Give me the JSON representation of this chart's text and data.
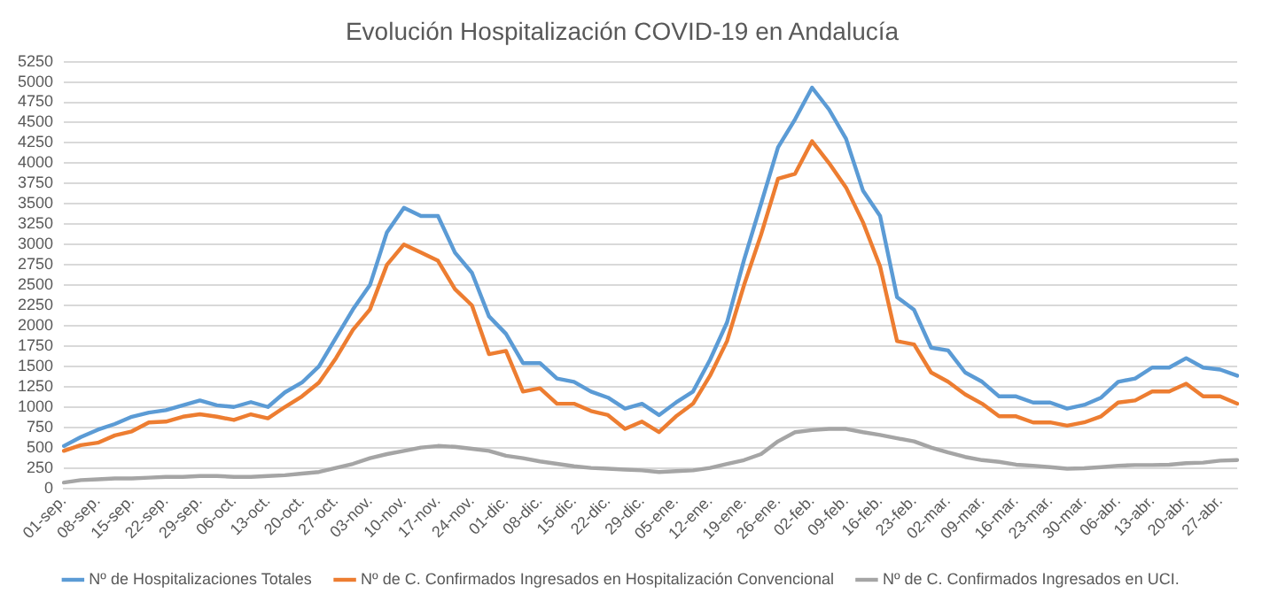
{
  "chart_data": {
    "type": "line",
    "title": "Evolución Hospitalización COVID-19 en Andalucía",
    "categories": [
      "01-sep.",
      null,
      "08-sep.",
      null,
      "15-sep.",
      null,
      "22-sep.",
      null,
      "29-sep.",
      null,
      "06-oct.",
      null,
      "13-oct.",
      null,
      "20-oct.",
      null,
      "27-oct.",
      null,
      "03-nov.",
      null,
      "10-nov.",
      null,
      "17-nov.",
      null,
      "24-nov.",
      null,
      "01-dic.",
      null,
      "08-dic.",
      null,
      "15-dic.",
      null,
      "22-dic.",
      null,
      "29-dic.",
      null,
      "05-ene.",
      null,
      "12-ene.",
      null,
      "19-ene.",
      null,
      "26-ene.",
      null,
      "02-feb.",
      null,
      "09-feb.",
      null,
      "16-feb.",
      null,
      "23-feb.",
      null,
      "02-mar.",
      null,
      "09-mar.",
      null,
      "16-mar.",
      null,
      "23-mar.",
      null,
      "30-mar.",
      null,
      "06-abr.",
      null,
      "13-abr.",
      null,
      "20-abr.",
      null,
      "27-abr.",
      null
    ],
    "series": [
      {
        "name": "Nº de Hospitalizaciones Totales",
        "color": "#5b9bd5",
        "values": [
          520,
          630,
          720,
          790,
          880,
          930,
          960,
          1020,
          1080,
          1020,
          1000,
          1060,
          1000,
          1180,
          1300,
          1500,
          1850,
          2200,
          2500,
          3150,
          3450,
          3350,
          3350,
          2900,
          2650,
          2115,
          1900,
          1540,
          1540,
          1350,
          1310,
          1190,
          1115,
          980,
          1040,
          900,
          1055,
          1190,
          1580,
          2040,
          2810,
          3500,
          4195,
          4540,
          4930,
          4660,
          4300,
          3660,
          3350,
          2350,
          2195,
          1730,
          1695,
          1425,
          1310,
          1130,
          1130,
          1055,
          1055,
          980,
          1025,
          1115,
          1310,
          1350,
          1485,
          1485,
          1600,
          1485,
          1460,
          1385
        ]
      },
      {
        "name": "Nº de C. Confirmados Ingresados en Hospitalización Convencional",
        "color": "#ed7d31",
        "values": [
          460,
          530,
          560,
          650,
          700,
          810,
          820,
          880,
          910,
          880,
          840,
          910,
          860,
          1000,
          1130,
          1300,
          1600,
          1950,
          2200,
          2750,
          3000,
          2900,
          2800,
          2450,
          2250,
          1650,
          1690,
          1190,
          1230,
          1040,
          1040,
          950,
          900,
          730,
          820,
          690,
          885,
          1040,
          1385,
          1810,
          2500,
          3120,
          3810,
          3870,
          4270,
          4000,
          3700,
          3270,
          2730,
          1810,
          1770,
          1425,
          1310,
          1155,
          1040,
          885,
          885,
          810,
          810,
          770,
          810,
          885,
          1055,
          1080,
          1190,
          1190,
          1285,
          1130,
          1130,
          1040
        ]
      },
      {
        "name": "Nº de C. Confirmados Ingresados en UCI.",
        "color": "#a5a5a5",
        "values": [
          70,
          100,
          110,
          120,
          120,
          130,
          140,
          140,
          150,
          150,
          140,
          140,
          150,
          160,
          180,
          200,
          250,
          300,
          370,
          420,
          460,
          500,
          520,
          510,
          485,
          460,
          400,
          370,
          330,
          300,
          270,
          250,
          240,
          230,
          220,
          200,
          210,
          220,
          250,
          300,
          346,
          420,
          577,
          690,
          716,
          730,
          730,
          690,
          655,
          615,
          577,
          500,
          440,
          385,
          346,
          325,
          290,
          277,
          260,
          240,
          245,
          260,
          277,
          285,
          285,
          290,
          308,
          315,
          340,
          346
        ]
      }
    ],
    "ylim": [
      0,
      5250
    ],
    "yticks": [
      0,
      250,
      500,
      750,
      1000,
      1250,
      1500,
      1750,
      2000,
      2250,
      2500,
      2750,
      3000,
      3250,
      3500,
      3750,
      4000,
      4250,
      4500,
      4750,
      5000,
      5250
    ],
    "grid": "y",
    "legend": "bottom",
    "marker": "none",
    "line_style": "solid"
  }
}
